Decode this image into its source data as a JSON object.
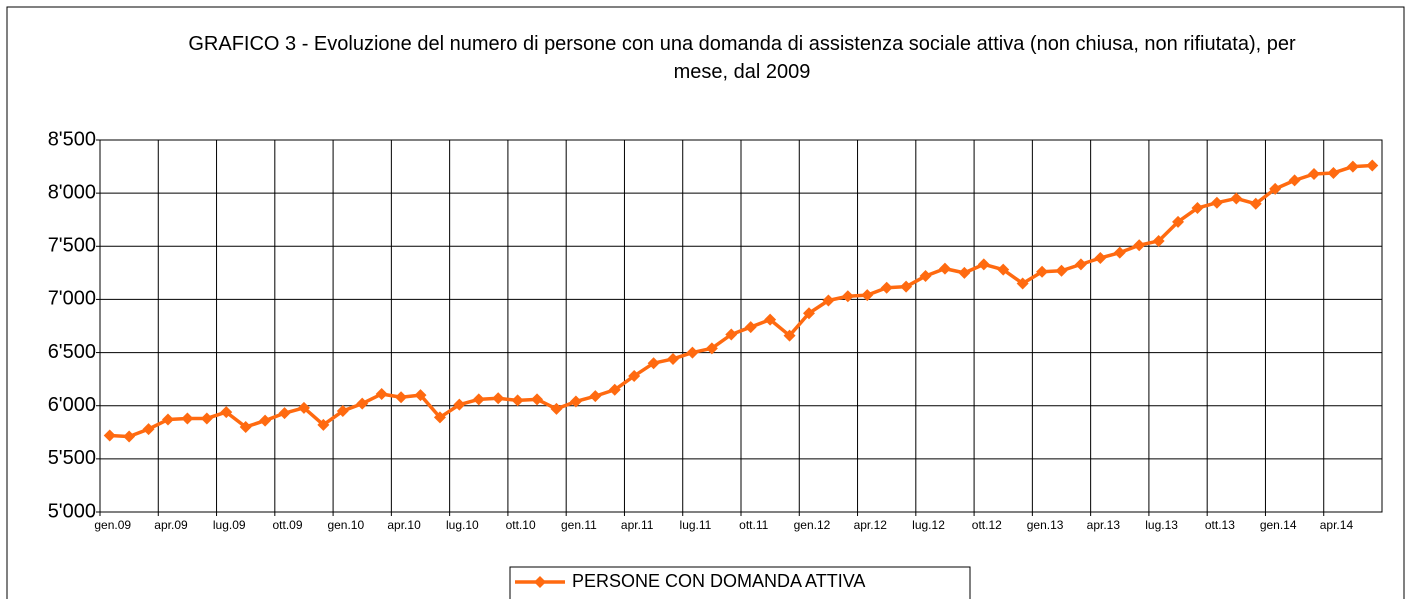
{
  "chart_data": {
    "type": "line",
    "title": "GRAFICO 3 - Evoluzione del numero di persone con una domanda di assistenza sociale attiva (non chiusa, non rifiutata), per mese, dal 2009",
    "categories": [
      "gen.09",
      null,
      null,
      "apr.09",
      null,
      null,
      "lug.09",
      null,
      null,
      "ott.09",
      null,
      null,
      "gen.10",
      null,
      null,
      "apr.10",
      null,
      null,
      "lug.10",
      null,
      null,
      "ott.10",
      null,
      null,
      "gen.11",
      null,
      null,
      "apr.11",
      null,
      null,
      "lug.11",
      null,
      null,
      "ott.11",
      null,
      null,
      "gen.12",
      null,
      null,
      "apr.12",
      null,
      null,
      "lug.12",
      null,
      null,
      "ott.12",
      null,
      null,
      "gen.13",
      null,
      null,
      "apr.13",
      null,
      null,
      "lug.13",
      null,
      null,
      "ott.13",
      null,
      null,
      "gen.14",
      null,
      null,
      "apr.14",
      null,
      null
    ],
    "series": [
      {
        "name": "PERSONE CON DOMANDA ATTIVA",
        "color": "#ff6a10",
        "values": [
          5720,
          5710,
          5780,
          5870,
          5880,
          5880,
          5940,
          5800,
          5860,
          5930,
          5980,
          5820,
          5950,
          6020,
          6110,
          6080,
          6100,
          5890,
          6010,
          6060,
          6070,
          6050,
          6060,
          5970,
          6040,
          6090,
          6150,
          6280,
          6400,
          6440,
          6500,
          6540,
          6670,
          6740,
          6810,
          6660,
          6870,
          6990,
          7030,
          7040,
          7110,
          7120,
          7220,
          7290,
          7250,
          7330,
          7280,
          7150,
          7260,
          7270,
          7330,
          7390,
          7440,
          7510,
          7550,
          7730,
          7860,
          7910,
          7950,
          7900,
          8040,
          8120,
          8180,
          8190,
          8250,
          8260
        ]
      }
    ],
    "ylim": [
      5000,
      8500
    ],
    "yticks": [
      {
        "value": 5000,
        "label": "5'000"
      },
      {
        "value": 5500,
        "label": "5'500"
      },
      {
        "value": 6000,
        "label": "6'000"
      },
      {
        "value": 6500,
        "label": "6'500"
      },
      {
        "value": 7000,
        "label": "7'000"
      },
      {
        "value": 7500,
        "label": "7'500"
      },
      {
        "value": 8000,
        "label": "8'000"
      },
      {
        "value": 8500,
        "label": "8'500"
      }
    ],
    "grid": true,
    "legend": "bottom"
  }
}
